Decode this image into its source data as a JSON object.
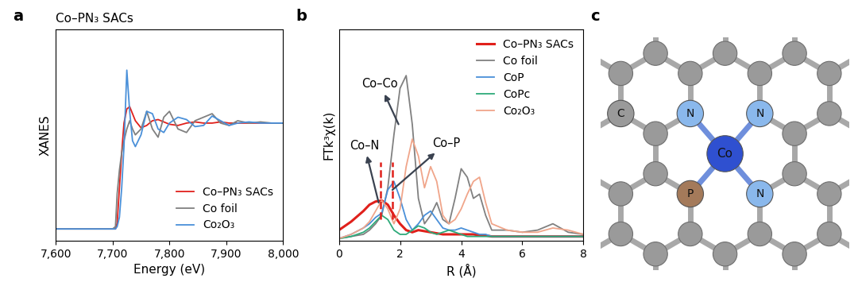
{
  "chart_data": [
    {
      "type": "line",
      "panel_label": "a",
      "title": "Co–PN₃ SACs",
      "x_label": "Energy (eV)",
      "y_label": "XANES",
      "xlim": [
        7600,
        8000
      ],
      "xticks": [
        {
          "value": 7600,
          "label": "7,600"
        },
        {
          "value": 7700,
          "label": "7,700"
        },
        {
          "value": 7800,
          "label": "7,800"
        },
        {
          "value": 7900,
          "label": "7,900"
        },
        {
          "value": 8000,
          "label": "8,000"
        }
      ],
      "ylim": [
        0,
        1.8
      ],
      "yticks": [],
      "tick_labels": "x",
      "grid": false,
      "legend": "lower right",
      "x": [
        7600,
        7650,
        7700,
        7705,
        7708,
        7712,
        7716,
        7720,
        7725,
        7730,
        7735,
        7740,
        7750,
        7760,
        7770,
        7780,
        7790,
        7800,
        7815,
        7830,
        7845,
        7860,
        7875,
        7890,
        7905,
        7920,
        7940,
        7960,
        7980,
        8000
      ],
      "series": [
        {
          "name": "Co–PN₃ SACs",
          "color": "#e0201b",
          "line_style": "solid",
          "values": [
            0.1,
            0.1,
            0.1,
            0.1,
            0.15,
            0.45,
            0.75,
            1.0,
            1.12,
            1.14,
            1.08,
            1.02,
            0.96,
            0.98,
            1.02,
            1.03,
            1.01,
            0.99,
            0.98,
            1.0,
            1.01,
            1.0,
            1.0,
            1.01,
            1.0,
            1.0,
            1.0,
            1.0,
            1.0,
            1.0
          ]
        },
        {
          "name": "Co foil",
          "color": "#808080",
          "line_style": "solid",
          "values": [
            0.1,
            0.1,
            0.1,
            0.12,
            0.4,
            0.6,
            0.75,
            0.85,
            0.95,
            1.02,
            0.95,
            0.9,
            0.95,
            1.1,
            0.95,
            0.88,
            1.05,
            1.1,
            0.95,
            0.92,
            1.02,
            1.05,
            1.08,
            1.0,
            0.98,
            1.02,
            1.0,
            1.01,
            1.0,
            1.0
          ]
        },
        {
          "name": "Co₂O₃",
          "color": "#4a90d9",
          "line_style": "solid",
          "values": [
            0.1,
            0.1,
            0.1,
            0.1,
            0.12,
            0.2,
            0.45,
            0.8,
            1.45,
            1.1,
            0.85,
            0.8,
            0.9,
            1.1,
            1.08,
            0.95,
            0.92,
            1.0,
            1.05,
            1.03,
            0.97,
            0.98,
            1.06,
            1.02,
            0.98,
            1.0,
            1.01,
            1.0,
            1.0,
            1.0
          ]
        }
      ]
    },
    {
      "type": "line",
      "panel_label": "b",
      "x_label": "R (Å)",
      "y_label": "FTk³χ(k)",
      "xlim": [
        0,
        8
      ],
      "xticks": [
        0,
        2,
        4,
        6,
        8
      ],
      "ylim": [
        0,
        1.0
      ],
      "yticks": [],
      "tick_labels": "x",
      "grid": false,
      "legend": "upper right",
      "x": [
        0,
        0.4,
        0.8,
        1.0,
        1.2,
        1.4,
        1.6,
        1.8,
        2.0,
        2.2,
        2.4,
        2.6,
        2.8,
        3.0,
        3.2,
        3.4,
        3.6,
        3.8,
        4.0,
        4.2,
        4.4,
        4.6,
        4.8,
        5.0,
        5.5,
        6.0,
        6.5,
        7.0,
        7.5,
        8.0
      ],
      "series": [
        {
          "name": "Co–PN₃ SACs",
          "color": "#e0201b",
          "line_style": "solid",
          "values": [
            0.05,
            0.09,
            0.14,
            0.17,
            0.185,
            0.19,
            0.17,
            0.12,
            0.08,
            0.05,
            0.04,
            0.05,
            0.045,
            0.04,
            0.035,
            0.03,
            0.03,
            0.03,
            0.03,
            0.03,
            0.03,
            0.025,
            0.025,
            0.02,
            0.02,
            0.02,
            0.02,
            0.02,
            0.02,
            0.02
          ]
        },
        {
          "name": "Co foil",
          "color": "#808080",
          "line_style": "solid",
          "values": [
            0.01,
            0.02,
            0.03,
            0.05,
            0.08,
            0.12,
            0.25,
            0.5,
            0.72,
            0.78,
            0.55,
            0.2,
            0.08,
            0.12,
            0.18,
            0.1,
            0.08,
            0.2,
            0.34,
            0.3,
            0.2,
            0.22,
            0.12,
            0.05,
            0.05,
            0.04,
            0.05,
            0.08,
            0.04,
            0.03
          ]
        },
        {
          "name": "CoP",
          "color": "#4a90d9",
          "line_style": "solid",
          "values": [
            0.01,
            0.03,
            0.06,
            0.08,
            0.11,
            0.13,
            0.24,
            0.28,
            0.2,
            0.1,
            0.05,
            0.08,
            0.12,
            0.14,
            0.1,
            0.06,
            0.05,
            0.05,
            0.06,
            0.05,
            0.04,
            0.03,
            0.03,
            0.02,
            0.02,
            0.02,
            0.02,
            0.02,
            0.02,
            0.02
          ]
        },
        {
          "name": "CoPc",
          "color": "#2eaa7a",
          "line_style": "solid",
          "values": [
            0.01,
            0.02,
            0.04,
            0.06,
            0.09,
            0.12,
            0.1,
            0.05,
            0.03,
            0.03,
            0.05,
            0.07,
            0.06,
            0.04,
            0.03,
            0.04,
            0.05,
            0.04,
            0.03,
            0.02,
            0.02,
            0.02,
            0.02,
            0.02,
            0.02,
            0.02,
            0.02,
            0.02,
            0.02,
            0.02
          ]
        },
        {
          "name": "Co₂O₃",
          "color": "#f0a58a",
          "line_style": "solid",
          "values": [
            0.01,
            0.03,
            0.06,
            0.09,
            0.14,
            0.19,
            0.15,
            0.08,
            0.15,
            0.35,
            0.48,
            0.4,
            0.25,
            0.35,
            0.28,
            0.12,
            0.08,
            0.1,
            0.15,
            0.22,
            0.28,
            0.3,
            0.18,
            0.08,
            0.05,
            0.04,
            0.04,
            0.06,
            0.05,
            0.03
          ]
        }
      ],
      "reference_lines": {
        "x": [
          1.35,
          1.75
        ],
        "color": "#e0201b",
        "line_style": "dashed"
      },
      "annotations": [
        {
          "text": "Co–Co",
          "x": 1.95,
          "y": 0.55
        },
        {
          "text": "Co–N",
          "x": 1.3,
          "y": 0.18
        },
        {
          "text": "Co–P",
          "x": 1.75,
          "y": 0.24
        }
      ]
    }
  ],
  "diagram": {
    "panel_label": "c",
    "atoms": [
      {
        "label": "C",
        "color": "#9a9a9a"
      },
      {
        "label": "N",
        "color": "#8ab8ec"
      },
      {
        "label": "N",
        "color": "#8ab8ec"
      },
      {
        "label": "N",
        "color": "#8ab8ec"
      },
      {
        "label": "Co",
        "color": "#2f50d0"
      },
      {
        "label": "P",
        "color": "#a47a5a"
      }
    ]
  }
}
